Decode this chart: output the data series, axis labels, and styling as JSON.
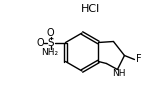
{
  "background_color": "#ffffff",
  "hcl_text": "HCl",
  "nh_text": "NH",
  "f_text": "F",
  "nh2_text": "NH₂",
  "s_text": "S",
  "o_top": "O",
  "o_left": "O",
  "figsize": [
    1.49,
    0.87
  ],
  "dpi": 100,
  "lw": 1.0
}
